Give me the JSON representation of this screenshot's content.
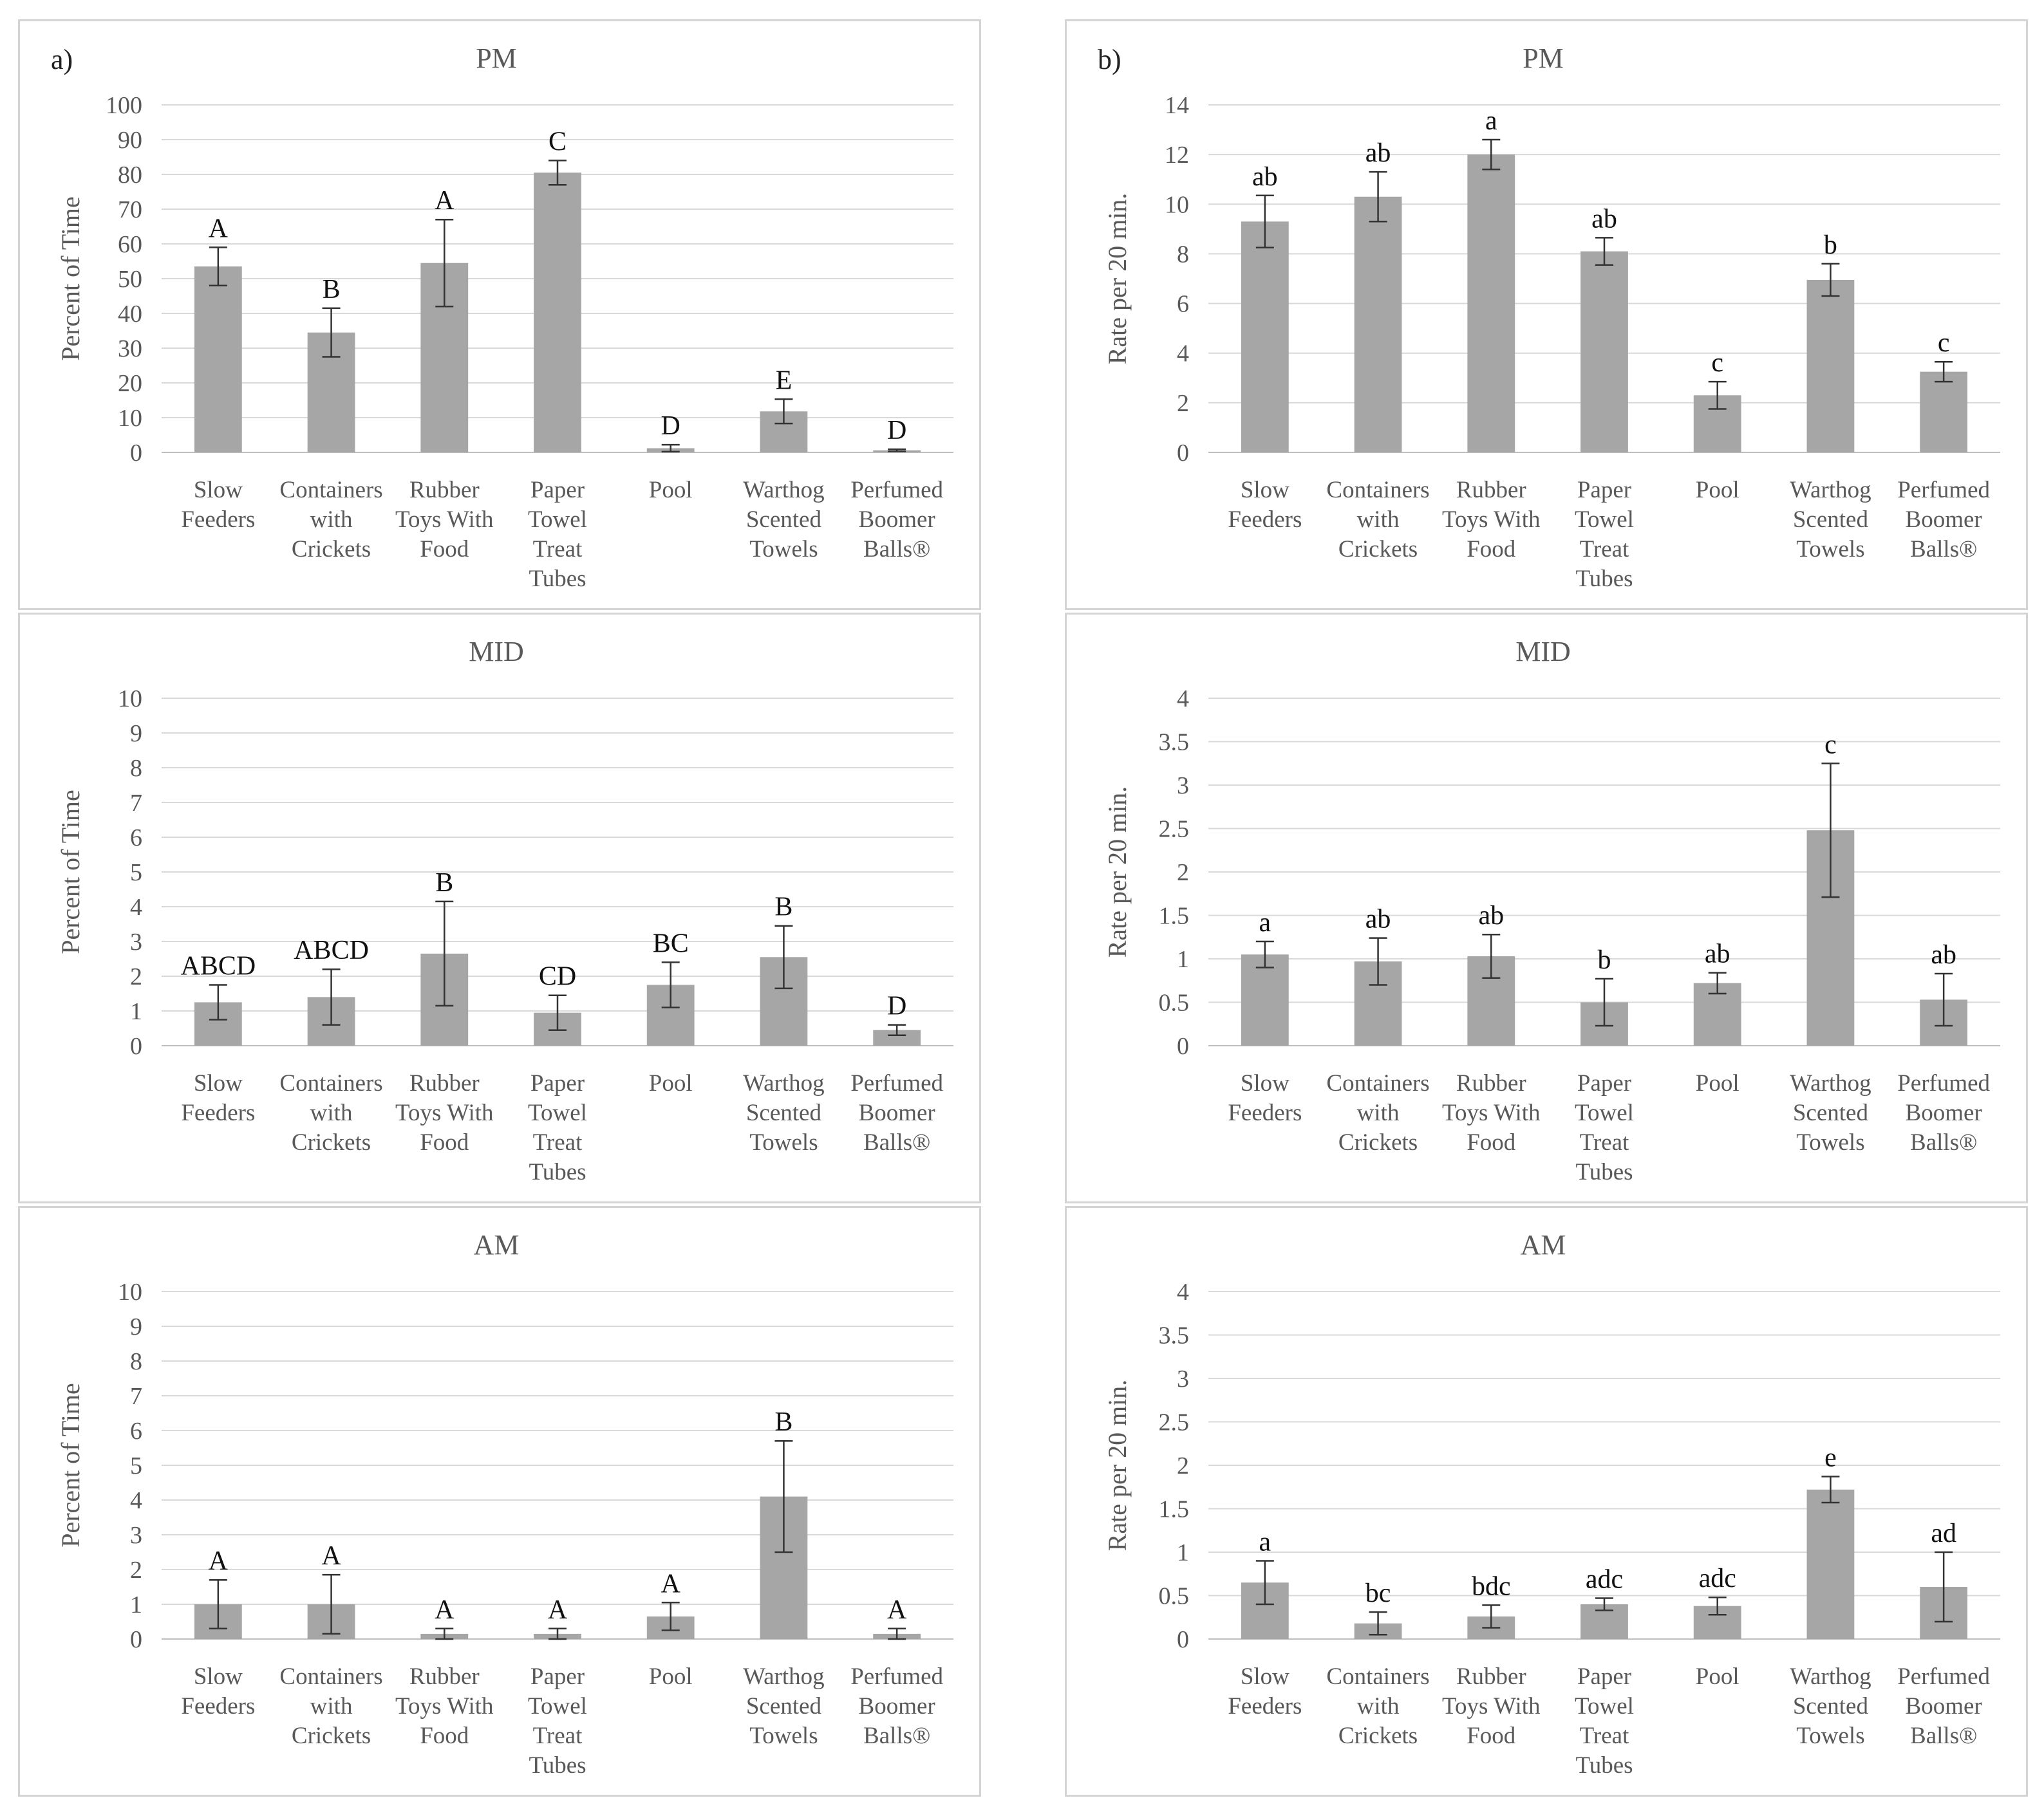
{
  "colors": {
    "bar": "#a6a6a6",
    "grid": "#d9d9d9",
    "axis": "#bfbfbf",
    "text": "#595959",
    "letters": "#111111"
  },
  "figure": {
    "left_tag": "a)",
    "right_tag": "b)"
  },
  "chart_data": [
    {
      "id": "a-pm",
      "type": "bar",
      "title": "PM",
      "ylabel": "Percent of Time",
      "xlabel": "",
      "ylim": [
        0,
        100
      ],
      "yticks": [
        0,
        10,
        20,
        30,
        40,
        50,
        60,
        70,
        80,
        90,
        100
      ],
      "ytick_labels": [
        "0",
        "10",
        "20",
        "30",
        "40",
        "50",
        "60",
        "70",
        "80",
        "90",
        "100"
      ],
      "categories": [
        [
          "Slow",
          "Feeders"
        ],
        [
          "Containers",
          "with",
          "Crickets"
        ],
        [
          "Rubber",
          "Toys With",
          "Food"
        ],
        [
          "Paper",
          "Towel",
          "Treat",
          "Tubes"
        ],
        [
          "Pool"
        ],
        [
          "Warthog",
          "Scented",
          "Towels"
        ],
        [
          "Perfumed",
          "Boomer",
          "Balls®"
        ]
      ],
      "values": [
        53.5,
        34.5,
        54.5,
        80.5,
        1.2,
        11.8,
        0.6
      ],
      "errors": [
        5.5,
        7,
        12.5,
        3.5,
        1,
        3.5,
        0.3
      ],
      "letters": [
        "A",
        "B",
        "A",
        "C",
        "D",
        "E",
        "D"
      ]
    },
    {
      "id": "a-mid",
      "type": "bar",
      "title": "MID",
      "ylabel": "Percent of Time",
      "xlabel": "",
      "ylim": [
        0,
        10
      ],
      "yticks": [
        0,
        1,
        2,
        3,
        4,
        5,
        6,
        7,
        8,
        9,
        10
      ],
      "ytick_labels": [
        "0",
        "1",
        "2",
        "3",
        "4",
        "5",
        "6",
        "7",
        "8",
        "9",
        "10"
      ],
      "categories": [
        [
          "Slow",
          "Feeders"
        ],
        [
          "Containers",
          "with",
          "Crickets"
        ],
        [
          "Rubber",
          "Toys With",
          "Food"
        ],
        [
          "Paper",
          "Towel",
          "Treat",
          "Tubes"
        ],
        [
          "Pool"
        ],
        [
          "Warthog",
          "Scented",
          "Towels"
        ],
        [
          "Perfumed",
          "Boomer",
          "Balls®"
        ]
      ],
      "values": [
        1.25,
        1.4,
        2.65,
        0.95,
        1.75,
        2.55,
        0.45
      ],
      "errors": [
        0.5,
        0.8,
        1.5,
        0.5,
        0.65,
        0.9,
        0.15
      ],
      "letters": [
        "ABCD",
        "ABCD",
        "B",
        "CD",
        "BC",
        "B",
        "D"
      ]
    },
    {
      "id": "a-am",
      "type": "bar",
      "title": "AM",
      "ylabel": "Percent of Time",
      "xlabel": "",
      "ylim": [
        0,
        10
      ],
      "yticks": [
        0,
        1,
        2,
        3,
        4,
        5,
        6,
        7,
        8,
        9,
        10
      ],
      "ytick_labels": [
        "0",
        "1",
        "2",
        "3",
        "4",
        "5",
        "6",
        "7",
        "8",
        "9",
        "10"
      ],
      "categories": [
        [
          "Slow",
          "Feeders"
        ],
        [
          "Containers",
          "with",
          "Crickets"
        ],
        [
          "Rubber",
          "Toys With",
          "Food"
        ],
        [
          "Paper",
          "Towel",
          "Treat",
          "Tubes"
        ],
        [
          "Pool"
        ],
        [
          "Warthog",
          "Scented",
          "Towels"
        ],
        [
          "Perfumed",
          "Boomer",
          "Balls®"
        ]
      ],
      "values": [
        1.0,
        1.0,
        0.15,
        0.15,
        0.65,
        4.1,
        0.15
      ],
      "errors": [
        0.7,
        0.85,
        0.15,
        0.15,
        0.4,
        1.6,
        0.15
      ],
      "letters": [
        "A",
        "A",
        "A",
        "A",
        "A",
        "B",
        "A"
      ]
    },
    {
      "id": "b-pm",
      "type": "bar",
      "title": "PM",
      "ylabel": "Rate per 20 min.",
      "xlabel": "",
      "ylim": [
        0,
        14
      ],
      "yticks": [
        0,
        2,
        4,
        6,
        8,
        10,
        12,
        14
      ],
      "ytick_labels": [
        "0",
        "2",
        "4",
        "6",
        "8",
        "10",
        "12",
        "14"
      ],
      "categories": [
        [
          "Slow",
          "Feeders"
        ],
        [
          "Containers",
          "with",
          "Crickets"
        ],
        [
          "Rubber",
          "Toys With",
          "Food"
        ],
        [
          "Paper",
          "Towel",
          "Treat",
          "Tubes"
        ],
        [
          "Pool"
        ],
        [
          "Warthog",
          "Scented",
          "Towels"
        ],
        [
          "Perfumed",
          "Boomer",
          "Balls®"
        ]
      ],
      "values": [
        9.3,
        10.3,
        12.0,
        8.1,
        2.3,
        6.95,
        3.25
      ],
      "errors": [
        1.05,
        1.0,
        0.6,
        0.55,
        0.55,
        0.65,
        0.4
      ],
      "letters": [
        "ab",
        "ab",
        "a",
        "ab",
        "c",
        "b",
        "c"
      ]
    },
    {
      "id": "b-mid",
      "type": "bar",
      "title": "MID",
      "ylabel": "Rate per 20 min.",
      "xlabel": "",
      "ylim": [
        0,
        4
      ],
      "yticks": [
        0,
        0.5,
        1,
        1.5,
        2,
        2.5,
        3,
        3.5,
        4
      ],
      "ytick_labels": [
        "0",
        "0.5",
        "1",
        "1.5",
        "2",
        "2.5",
        "3",
        "3.5",
        "4"
      ],
      "categories": [
        [
          "Slow",
          "Feeders"
        ],
        [
          "Containers",
          "with",
          "Crickets"
        ],
        [
          "Rubber",
          "Toys With",
          "Food"
        ],
        [
          "Paper",
          "Towel",
          "Treat",
          "Tubes"
        ],
        [
          "Pool"
        ],
        [
          "Warthog",
          "Scented",
          "Towels"
        ],
        [
          "Perfumed",
          "Boomer",
          "Balls®"
        ]
      ],
      "values": [
        1.05,
        0.97,
        1.03,
        0.5,
        0.72,
        2.48,
        0.53
      ],
      "errors": [
        0.15,
        0.27,
        0.25,
        0.27,
        0.12,
        0.77,
        0.3
      ],
      "letters": [
        "a",
        "ab",
        "ab",
        "b",
        "ab",
        "c",
        "ab"
      ]
    },
    {
      "id": "b-am",
      "type": "bar",
      "title": "AM",
      "ylabel": "Rate per 20 min.",
      "xlabel": "",
      "ylim": [
        0,
        4
      ],
      "yticks": [
        0,
        0.5,
        1,
        1.5,
        2,
        2.5,
        3,
        3.5,
        4
      ],
      "ytick_labels": [
        "0",
        "0.5",
        "1",
        "1.5",
        "2",
        "2.5",
        "3",
        "3.5",
        "4"
      ],
      "categories": [
        [
          "Slow",
          "Feeders"
        ],
        [
          "Containers",
          "with",
          "Crickets"
        ],
        [
          "Rubber",
          "Toys With",
          "Food"
        ],
        [
          "Paper",
          "Towel",
          "Treat",
          "Tubes"
        ],
        [
          "Pool"
        ],
        [
          "Warthog",
          "Scented",
          "Towels"
        ],
        [
          "Perfumed",
          "Boomer",
          "Balls®"
        ]
      ],
      "values": [
        0.65,
        0.18,
        0.26,
        0.4,
        0.38,
        1.72,
        0.6
      ],
      "errors": [
        0.25,
        0.13,
        0.13,
        0.07,
        0.1,
        0.15,
        0.4
      ],
      "letters": [
        "a",
        "bc",
        "bdc",
        "adc",
        "adc",
        "e",
        "ad"
      ]
    }
  ]
}
